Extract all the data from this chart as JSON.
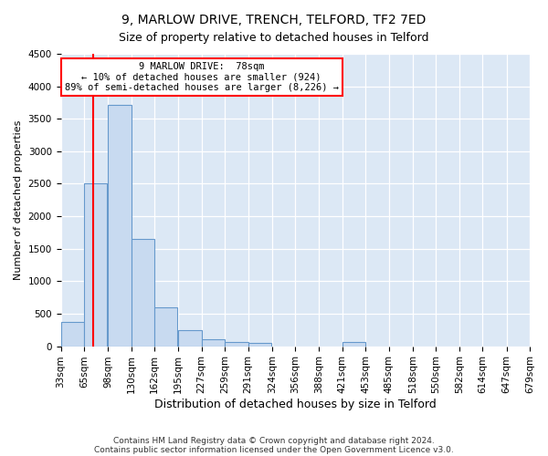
{
  "title1": "9, MARLOW DRIVE, TRENCH, TELFORD, TF2 7ED",
  "title2": "Size of property relative to detached houses in Telford",
  "xlabel": "Distribution of detached houses by size in Telford",
  "ylabel": "Number of detached properties",
  "bins": [
    33,
    65,
    98,
    130,
    162,
    195,
    227,
    259,
    291,
    324,
    356,
    388,
    421,
    453,
    485,
    518,
    550,
    582,
    614,
    647,
    679
  ],
  "counts": [
    380,
    2500,
    3720,
    1650,
    600,
    240,
    100,
    60,
    55,
    0,
    0,
    0,
    60,
    0,
    0,
    0,
    0,
    0,
    0,
    0
  ],
  "bar_color": "#c8daf0",
  "bar_edge_color": "#6699cc",
  "vline_x": 78,
  "vline_color": "red",
  "annotation_line1": "9 MARLOW DRIVE:  78sqm",
  "annotation_line2": "← 10% of detached houses are smaller (924)",
  "annotation_line3": "89% of semi-detached houses are larger (8,226) →",
  "annotation_box_color": "white",
  "annotation_box_edge_color": "red",
  "ylim": [
    0,
    4500
  ],
  "yticks": [
    0,
    500,
    1000,
    1500,
    2000,
    2500,
    3000,
    3500,
    4000,
    4500
  ],
  "footnote1": "Contains HM Land Registry data © Crown copyright and database right 2024.",
  "footnote2": "Contains public sector information licensed under the Open Government Licence v3.0.",
  "bg_color": "#ffffff",
  "plot_bg_color": "#dce8f5",
  "title1_fontsize": 10,
  "title2_fontsize": 9,
  "xlabel_fontsize": 9,
  "ylabel_fontsize": 8,
  "tick_fontsize": 7.5,
  "footnote_fontsize": 6.5
}
